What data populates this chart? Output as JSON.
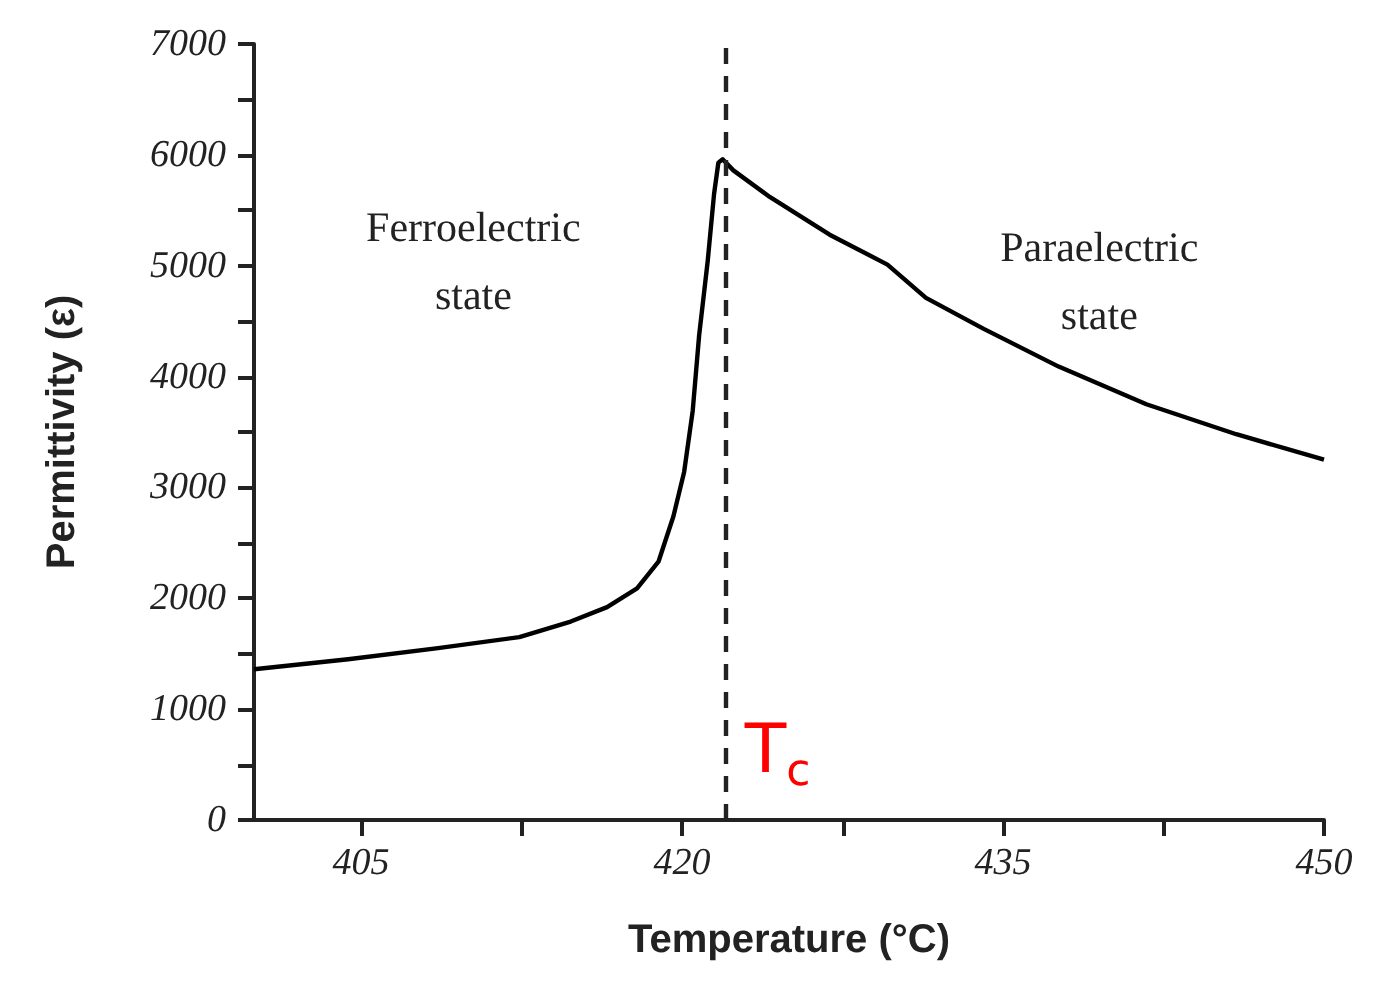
{
  "chart_data": {
    "type": "line",
    "xlabel": "Temperature (°C)",
    "ylabel": "Permittivity (ε)",
    "x": [
      400,
      404.4,
      408.6,
      412.4,
      414.8,
      416.5,
      417.9,
      418.9,
      419.6,
      420.1,
      420.5,
      420.8,
      421.2,
      421.5,
      421.7,
      421.9,
      422.4,
      424.1,
      426.9,
      429.6,
      431.4,
      434.1,
      437.6,
      441.7,
      445.9,
      450
    ],
    "series": [
      {
        "color": "#000000",
        "values": [
          1360,
          1450,
          1550,
          1650,
          1790,
          1920,
          2090,
          2330,
          2740,
          3140,
          3690,
          4370,
          5040,
          5650,
          5930,
          5960,
          5860,
          5620,
          5280,
          5010,
          4710,
          4430,
          4090,
          3750,
          3480,
          3250
        ]
      }
    ],
    "xlim": [
      400,
      450
    ],
    "xticks": [
      405,
      {
        "value": 412.5,
        "label": null
      },
      420,
      {
        "value": 427.5,
        "label": null
      },
      435,
      {
        "value": 442.5,
        "label": null
      },
      450
    ],
    "ylim": [
      0,
      7000
    ],
    "yticks": [
      0,
      {
        "value": 500,
        "label": null
      },
      1000,
      {
        "value": 1500,
        "label": null
      },
      2000,
      {
        "value": 2500,
        "label": null
      },
      3000,
      {
        "value": 3500,
        "label": null
      },
      4000,
      {
        "value": 4500,
        "label": null
      },
      5000,
      {
        "value": 5500,
        "label": null
      },
      6000,
      {
        "value": 6500,
        "label": null
      },
      7000
    ],
    "ref_lines": [
      {
        "axis": "x",
        "value": 422,
        "label": "T$_{c}$",
        "line_style": "dashed"
      }
    ],
    "annotations": [
      "Ferroelectric\nstate",
      "Paraelectric\nstate"
    ],
    "grid": false,
    "marker": "none",
    "line_style": "solid"
  }
}
